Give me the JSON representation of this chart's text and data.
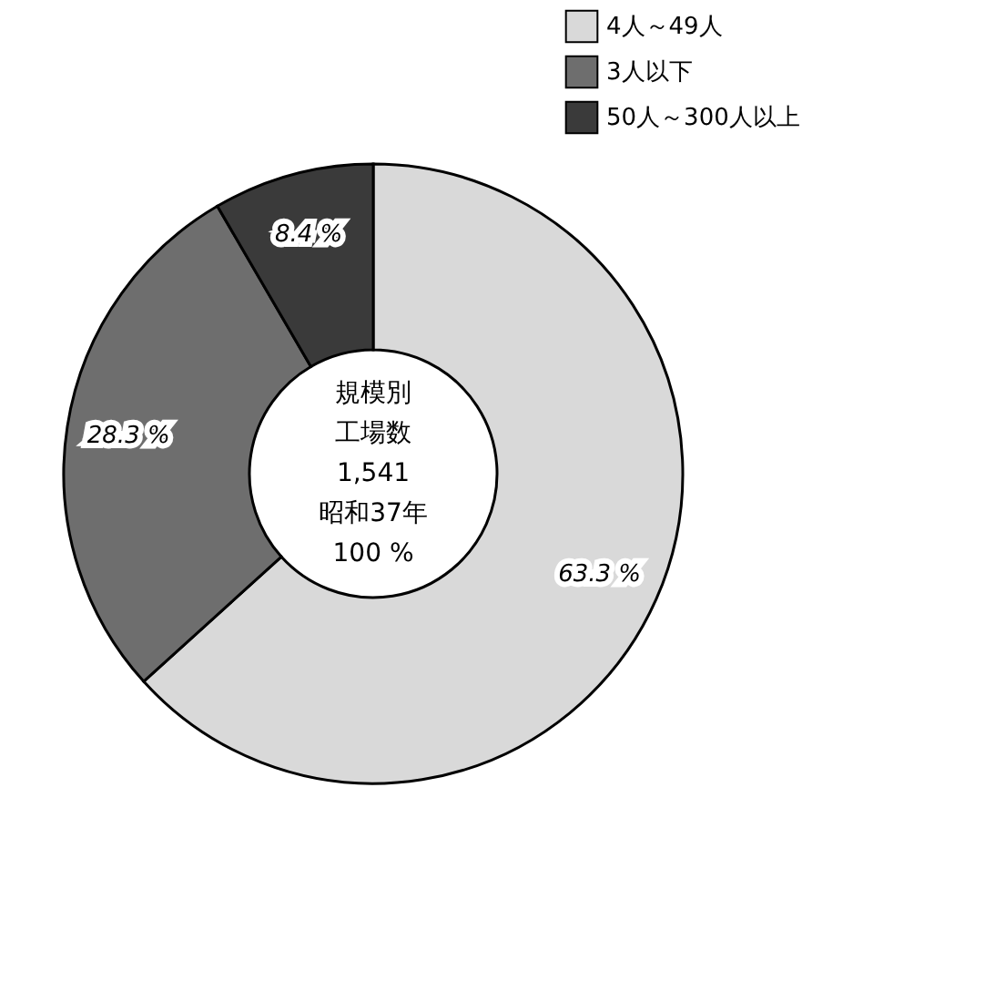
{
  "chart_data": {
    "type": "donut",
    "categories": [
      "4人～49人",
      "3人以下",
      "50人～300人以上"
    ],
    "values": [
      63.3,
      28.3,
      8.4
    ],
    "colors": [
      "#d9d9d9",
      "#6e6e6e",
      "#3a3a3a"
    ],
    "value_labels": [
      "63.3 %",
      "28.3 %",
      "8.4 %"
    ],
    "annotations": [
      "規模別",
      "工場数",
      "1,541",
      "昭和37年",
      "100 %"
    ],
    "legend": "top right"
  }
}
